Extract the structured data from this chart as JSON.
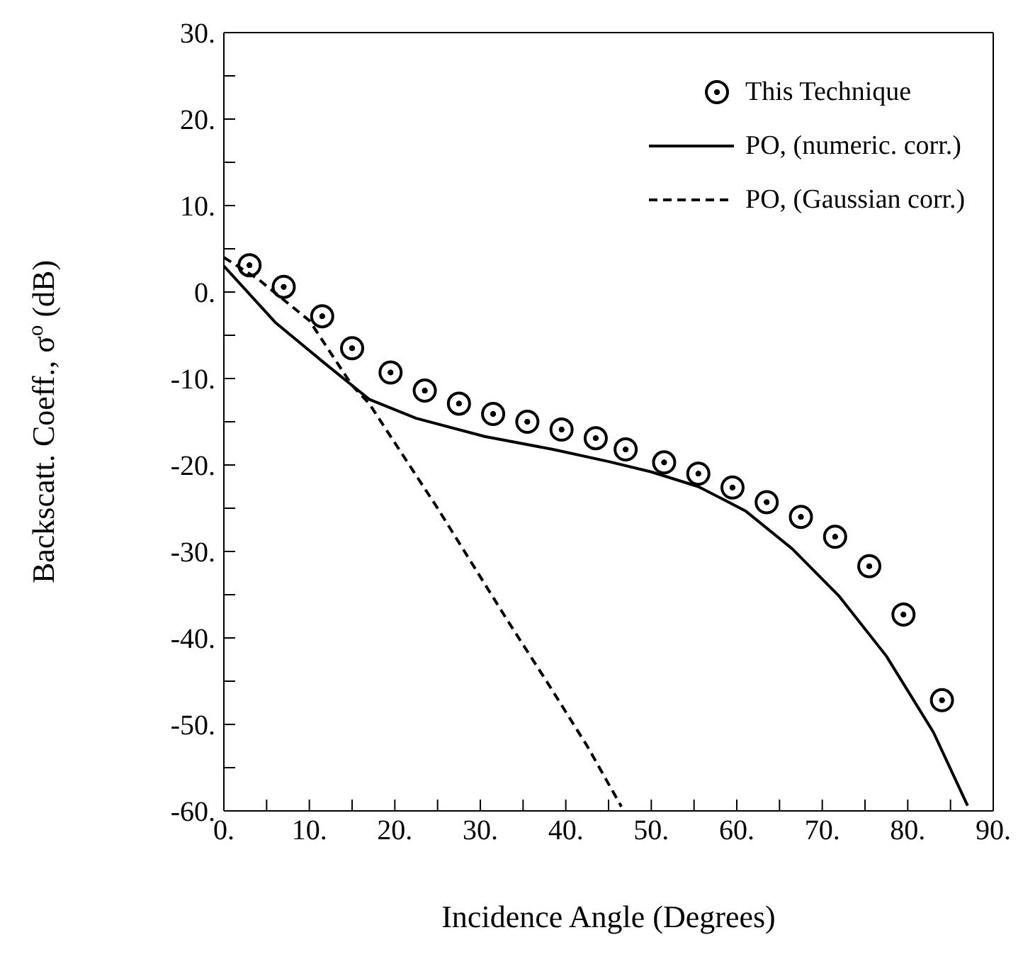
{
  "chart_data": {
    "type": "line",
    "xlabel": "Incidence Angle (Degrees)",
    "ylabel": "Backscatt. Coeff., σ$^{o}$ (dB)",
    "xlim": [
      0,
      90
    ],
    "ylim": [
      -60,
      30
    ],
    "xticks": [
      {
        "value": 0,
        "label": "0."
      },
      {
        "value": 5,
        "label": null
      },
      {
        "value": 10,
        "label": "10."
      },
      {
        "value": 15,
        "label": null
      },
      {
        "value": 20,
        "label": "20."
      },
      {
        "value": 25,
        "label": null
      },
      {
        "value": 30,
        "label": "30."
      },
      {
        "value": 35,
        "label": null
      },
      {
        "value": 40,
        "label": "40."
      },
      {
        "value": 45,
        "label": null
      },
      {
        "value": 50,
        "label": "50."
      },
      {
        "value": 55,
        "label": null
      },
      {
        "value": 60,
        "label": "60."
      },
      {
        "value": 65,
        "label": null
      },
      {
        "value": 70,
        "label": "70."
      },
      {
        "value": 75,
        "label": null
      },
      {
        "value": 80,
        "label": "80."
      },
      {
        "value": 85,
        "label": null
      },
      {
        "value": 90,
        "label": "90."
      }
    ],
    "yticks": [
      {
        "value": -60,
        "label": "-60."
      },
      {
        "value": -55,
        "label": null
      },
      {
        "value": -50,
        "label": "-50."
      },
      {
        "value": -45,
        "label": null
      },
      {
        "value": -40,
        "label": "-40."
      },
      {
        "value": -35,
        "label": null
      },
      {
        "value": -30,
        "label": "-30."
      },
      {
        "value": -25,
        "label": null
      },
      {
        "value": -20,
        "label": "-20."
      },
      {
        "value": -15,
        "label": null
      },
      {
        "value": -10,
        "label": "-10."
      },
      {
        "value": -5,
        "label": null
      },
      {
        "value": 0,
        "label": "0."
      },
      {
        "value": 5,
        "label": null
      },
      {
        "value": 10,
        "label": "10."
      },
      {
        "value": 15,
        "label": null
      },
      {
        "value": 20,
        "label": "20."
      },
      {
        "value": 25,
        "label": null
      },
      {
        "value": 30,
        "label": "30."
      }
    ],
    "legend": "top right",
    "series": [
      {
        "name": "This Technique",
        "type": "scatter",
        "color": "#000000",
        "marker": "circle",
        "x": [
          3,
          7,
          11.5,
          15,
          19.5,
          23.5,
          27.5,
          31.5,
          35.5,
          39.5,
          43.5,
          47,
          51.5,
          55.5,
          59.5,
          63.5,
          67.5,
          71.5,
          75.5,
          79.5,
          84
        ],
        "values": [
          3.1,
          0.6,
          -2.8,
          -6.5,
          -9.3,
          -11.4,
          -12.9,
          -14.1,
          -15,
          -15.9,
          -16.9,
          -18.2,
          -19.7,
          -21,
          -22.6,
          -24.3,
          -26,
          -28.3,
          -31.7,
          -37.3,
          -47.2
        ]
      },
      {
        "name": "PO, (numeric. corr.)",
        "color": "#000000",
        "marker": "none",
        "line_style": "solid",
        "x": [
          0,
          6,
          11.5,
          17,
          22.5,
          30.5,
          38.5,
          45,
          50,
          55.5,
          61,
          66.5,
          72,
          77.5,
          83,
          87
        ],
        "values": [
          3,
          -3.5,
          -8,
          -12.4,
          -14.6,
          -16.7,
          -18.2,
          -19.6,
          -20.8,
          -22.5,
          -25.3,
          -29.7,
          -35.2,
          -42.1,
          -50.9,
          -59.4
        ]
      },
      {
        "name": "PO, (Gaussian corr.)",
        "color": "#000000",
        "marker": "none",
        "line_style": "dashed",
        "x": [
          0,
          4,
          10,
          15,
          17,
          25,
          33,
          38,
          42.5,
          46.5
        ],
        "values": [
          4,
          1.5,
          -3.3,
          -10.8,
          -12.9,
          -25,
          -37.7,
          -45.4,
          -52.5,
          -59.5
        ]
      }
    ]
  }
}
